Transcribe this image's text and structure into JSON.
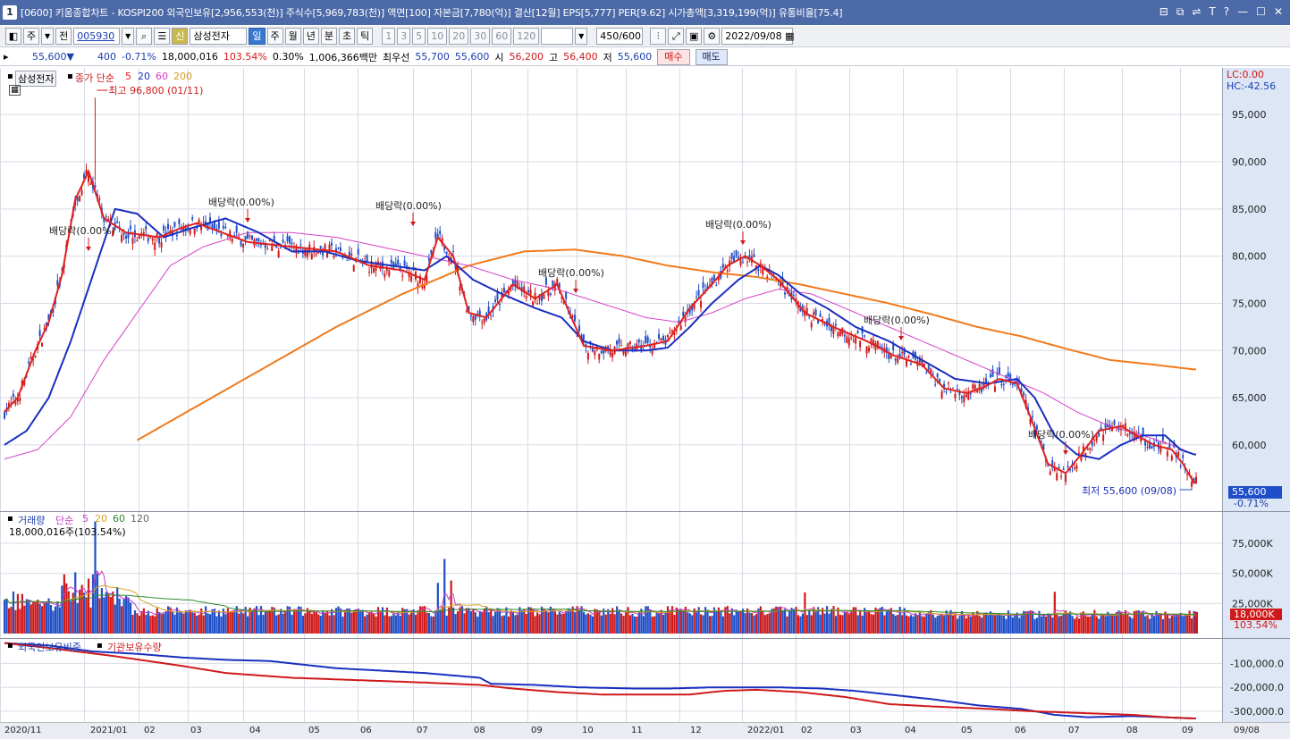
{
  "window": {
    "badge": "1",
    "title": "[0600] 키움종합차트 - KOSPI200 외국인보유[2,956,553(천)] 주식수[5,969,783(천)] 액면[100] 자본금[7,780(억)] 결산[12월] EPS[5,777] PER[9.62] 시가총액[3,319,199(억)] 유통비율[75.4]",
    "controls": [
      "⊟",
      "⧉",
      "⇌",
      "T",
      "?",
      "—",
      "☐",
      "✕"
    ]
  },
  "toolbar": {
    "period": "주",
    "adj": "전",
    "code": "005930",
    "stock_name": "삼성전자",
    "shin": "신",
    "intervals": [
      "일",
      "주",
      "월",
      "년",
      "분",
      "초",
      "틱"
    ],
    "active_interval": "일",
    "nums": [
      "1",
      "3",
      "5",
      "10",
      "20",
      "30",
      "60",
      "120"
    ],
    "count": "450",
    "count_total": "/600",
    "date": "2022/09/08"
  },
  "quote": {
    "price": "55,600",
    "arrow": "▼",
    "change": "400",
    "rate": "-0.71%",
    "volume": "18,000,016",
    "vol_rate": "103.54%",
    "turnover": "0.30%",
    "amount": "1,006,366백만",
    "best_label": "최우선",
    "ask": "55,700",
    "bid": "55,600",
    "open_label": "시",
    "open": "56,200",
    "high_label": "고",
    "high": "56,400",
    "low_label": "저",
    "low": "55,600",
    "buy": "매수",
    "sell": "매도"
  },
  "price_pane": {
    "stock": "삼성전자",
    "legend_main": "종가 단순",
    "ma_labels": [
      "5",
      "20",
      "60",
      "200"
    ],
    "lc": "LC:0.00",
    "hc": "HC:-42.56",
    "max_label": "최고 96,800 (01/11)",
    "min_label": "최저 55,600 (09/08)",
    "div_label": "배당락(0.00%)",
    "last_price": "55,600",
    "last_rate": "-0.71%",
    "yticks": [
      "95,000",
      "90,000",
      "85,000",
      "80,000",
      "75,000",
      "70,000",
      "65,000",
      "60,000"
    ]
  },
  "volume_pane": {
    "title": "거래량",
    "legend": "단순",
    "ma_labels": [
      "5",
      "20",
      "60",
      "120"
    ],
    "current": "18,000,016주(103.54%)",
    "yticks": [
      "75,000K",
      "50,000K",
      "25,000K"
    ],
    "last_vol": "18,000K",
    "last_rate": "103.54%"
  },
  "flow_pane": {
    "series": [
      "외국인보유비중",
      "기관보유수량"
    ],
    "yticks": [
      "-100,000.0",
      "-200,000.0",
      "-300,000.0"
    ]
  },
  "xaxis": [
    "2020/11",
    "2021/01",
    "02",
    "03",
    "04",
    "05",
    "06",
    "07",
    "08",
    "09",
    "10",
    "11",
    "12",
    "2022/01",
    "02",
    "03",
    "04",
    "05",
    "06",
    "07",
    "08",
    "09",
    "09/08"
  ],
  "colors": {
    "up": "#d0191a",
    "down": "#1f4fc8",
    "ma5": "#e0201f",
    "ma20": "#1a2fbf",
    "ma60": "#d640c8",
    "ma200": "#f07a1c",
    "grid": "#d8dbe3",
    "frame": "#9aa3b3"
  },
  "chart_data": {
    "type": "line",
    "series": [
      {
        "name": "5",
        "anchors": [
          [
            0,
            63500
          ],
          [
            6,
            65000
          ],
          [
            14,
            70000
          ],
          [
            20,
            73000
          ],
          [
            26,
            78000
          ],
          [
            32,
            86000
          ],
          [
            38,
            89000
          ],
          [
            45,
            84000
          ],
          [
            55,
            82500
          ],
          [
            70,
            82000
          ],
          [
            80,
            83000
          ],
          [
            87,
            83500
          ],
          [
            95,
            82800
          ],
          [
            110,
            81500
          ],
          [
            130,
            81000
          ],
          [
            150,
            80500
          ],
          [
            165,
            79000
          ],
          [
            180,
            78500
          ],
          [
            190,
            77500
          ],
          [
            196,
            82000
          ],
          [
            203,
            80000
          ],
          [
            210,
            74000
          ],
          [
            218,
            73500
          ],
          [
            230,
            77000
          ],
          [
            240,
            75500
          ],
          [
            250,
            77000
          ],
          [
            262,
            70500
          ],
          [
            275,
            70000
          ],
          [
            290,
            70500
          ],
          [
            300,
            71000
          ],
          [
            310,
            74500
          ],
          [
            320,
            77000
          ],
          [
            327,
            79000
          ],
          [
            335,
            80000
          ],
          [
            342,
            79000
          ],
          [
            350,
            77500
          ],
          [
            362,
            74000
          ],
          [
            375,
            72500
          ],
          [
            390,
            71000
          ],
          [
            402,
            69500
          ],
          [
            415,
            68500
          ],
          [
            425,
            66000
          ],
          [
            435,
            65500
          ],
          [
            442,
            66000
          ],
          [
            450,
            67000
          ],
          [
            458,
            66500
          ],
          [
            464,
            63000
          ],
          [
            472,
            58000
          ],
          [
            480,
            57000
          ],
          [
            487,
            59000
          ],
          [
            495,
            61500
          ],
          [
            505,
            62000
          ],
          [
            512,
            61000
          ],
          [
            520,
            60000
          ],
          [
            528,
            59500
          ],
          [
            533,
            58000
          ],
          [
            538,
            56000
          ]
        ]
      },
      {
        "name": "20",
        "anchors": [
          [
            0,
            60000
          ],
          [
            10,
            61500
          ],
          [
            20,
            65000
          ],
          [
            30,
            71000
          ],
          [
            40,
            78000
          ],
          [
            50,
            85000
          ],
          [
            60,
            84500
          ],
          [
            72,
            82000
          ],
          [
            85,
            83000
          ],
          [
            100,
            84000
          ],
          [
            115,
            82500
          ],
          [
            130,
            80500
          ],
          [
            145,
            80500
          ],
          [
            160,
            79500
          ],
          [
            175,
            79000
          ],
          [
            190,
            78500
          ],
          [
            200,
            80000
          ],
          [
            212,
            77500
          ],
          [
            225,
            76000
          ],
          [
            240,
            74500
          ],
          [
            252,
            73500
          ],
          [
            262,
            71000
          ],
          [
            275,
            70000
          ],
          [
            290,
            70000
          ],
          [
            300,
            70300
          ],
          [
            310,
            72500
          ],
          [
            320,
            75000
          ],
          [
            332,
            77500
          ],
          [
            342,
            79000
          ],
          [
            350,
            78000
          ],
          [
            360,
            76000
          ],
          [
            372,
            74500
          ],
          [
            385,
            72500
          ],
          [
            400,
            71000
          ],
          [
            415,
            69000
          ],
          [
            430,
            67000
          ],
          [
            445,
            66500
          ],
          [
            458,
            67000
          ],
          [
            466,
            65000
          ],
          [
            475,
            61000
          ],
          [
            485,
            59000
          ],
          [
            495,
            58500
          ],
          [
            505,
            60000
          ],
          [
            515,
            61000
          ],
          [
            525,
            61000
          ],
          [
            532,
            59500
          ],
          [
            538,
            59000
          ]
        ]
      },
      {
        "name": "60",
        "anchors": [
          [
            0,
            58500
          ],
          [
            15,
            59500
          ],
          [
            30,
            63000
          ],
          [
            45,
            69000
          ],
          [
            60,
            74000
          ],
          [
            75,
            79000
          ],
          [
            90,
            81000
          ],
          [
            110,
            82500
          ],
          [
            130,
            82500
          ],
          [
            150,
            82000
          ],
          [
            170,
            81000
          ],
          [
            190,
            80000
          ],
          [
            210,
            79000
          ],
          [
            230,
            77500
          ],
          [
            250,
            76500
          ],
          [
            270,
            75000
          ],
          [
            290,
            73500
          ],
          [
            305,
            73000
          ],
          [
            320,
            74000
          ],
          [
            335,
            75500
          ],
          [
            350,
            76500
          ],
          [
            365,
            76000
          ],
          [
            380,
            74500
          ],
          [
            400,
            72500
          ],
          [
            420,
            70500
          ],
          [
            440,
            68500
          ],
          [
            455,
            67000
          ],
          [
            470,
            65500
          ],
          [
            485,
            63500
          ],
          [
            500,
            62000
          ],
          [
            515,
            61000
          ],
          [
            528,
            60000
          ],
          [
            538,
            59000
          ]
        ]
      },
      {
        "name": "200",
        "anchors": [
          [
            60,
            60500
          ],
          [
            90,
            64500
          ],
          [
            120,
            68500
          ],
          [
            150,
            72500
          ],
          [
            180,
            76000
          ],
          [
            210,
            79000
          ],
          [
            235,
            80500
          ],
          [
            258,
            80700
          ],
          [
            280,
            80000
          ],
          [
            300,
            79000
          ],
          [
            320,
            78300
          ],
          [
            340,
            77800
          ],
          [
            360,
            77000
          ],
          [
            380,
            76000
          ],
          [
            400,
            75000
          ],
          [
            420,
            73800
          ],
          [
            440,
            72500
          ],
          [
            460,
            71500
          ],
          [
            480,
            70200
          ],
          [
            500,
            69000
          ],
          [
            520,
            68500
          ],
          [
            538,
            68000
          ]
        ]
      },
      {
        "name": "외국인보유비중",
        "anchors": [
          [
            0,
            -15000
          ],
          [
            20,
            -25000
          ],
          [
            40,
            -50000
          ],
          [
            60,
            -60000
          ],
          [
            80,
            -75000
          ],
          [
            100,
            -85000
          ],
          [
            120,
            -90000
          ],
          [
            140,
            -110000
          ],
          [
            150,
            -120000
          ],
          [
            170,
            -130000
          ],
          [
            190,
            -140000
          ],
          [
            215,
            -160000
          ],
          [
            220,
            -185000
          ],
          [
            240,
            -190000
          ],
          [
            260,
            -200000
          ],
          [
            285,
            -205000
          ],
          [
            300,
            -205000
          ],
          [
            320,
            -200000
          ],
          [
            335,
            -200000
          ],
          [
            350,
            -200000
          ],
          [
            370,
            -205000
          ],
          [
            385,
            -215000
          ],
          [
            400,
            -230000
          ],
          [
            420,
            -250000
          ],
          [
            440,
            -275000
          ],
          [
            460,
            -290000
          ],
          [
            475,
            -315000
          ],
          [
            490,
            -325000
          ],
          [
            510,
            -320000
          ],
          [
            525,
            -325000
          ],
          [
            538,
            -330000
          ]
        ]
      },
      {
        "name": "기관보유수량",
        "anchors": [
          [
            0,
            -15000
          ],
          [
            20,
            -35000
          ],
          [
            50,
            -70000
          ],
          [
            80,
            -110000
          ],
          [
            100,
            -140000
          ],
          [
            130,
            -160000
          ],
          [
            160,
            -170000
          ],
          [
            190,
            -180000
          ],
          [
            215,
            -190000
          ],
          [
            230,
            -205000
          ],
          [
            250,
            -220000
          ],
          [
            270,
            -230000
          ],
          [
            290,
            -230000
          ],
          [
            310,
            -230000
          ],
          [
            325,
            -215000
          ],
          [
            340,
            -210000
          ],
          [
            360,
            -220000
          ],
          [
            380,
            -240000
          ],
          [
            400,
            -270000
          ],
          [
            420,
            -280000
          ],
          [
            445,
            -290000
          ],
          [
            465,
            -300000
          ],
          [
            480,
            -305000
          ],
          [
            495,
            -310000
          ],
          [
            510,
            -315000
          ],
          [
            525,
            -325000
          ],
          [
            538,
            -330000
          ]
        ]
      }
    ],
    "y_price_range": [
      54500,
      99000
    ],
    "y_volume_range": [
      0,
      95000
    ],
    "y_flow_range": [
      -345000,
      -20000
    ],
    "x_count": 540
  }
}
